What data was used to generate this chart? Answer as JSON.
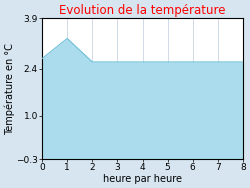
{
  "title": "Evolution de la température",
  "xlabel": "heure par heure",
  "ylabel": "Température en °C",
  "x": [
    0,
    1,
    2,
    3,
    4,
    5,
    6,
    7,
    8
  ],
  "y": [
    2.7,
    3.3,
    2.6,
    2.6,
    2.6,
    2.6,
    2.6,
    2.6,
    2.6
  ],
  "xlim": [
    0,
    8
  ],
  "ylim": [
    -0.3,
    3.9
  ],
  "yticks": [
    -0.3,
    1.0,
    2.4,
    3.9
  ],
  "xticks": [
    0,
    1,
    2,
    3,
    4,
    5,
    6,
    7,
    8
  ],
  "fill_color": "#aadcee",
  "line_color": "#6bbfd8",
  "title_color": "#ff0000",
  "bg_color": "#d6e5ef",
  "plot_bg_color": "#ffffff",
  "grid_color": "#bbccdd",
  "title_fontsize": 8.5,
  "label_fontsize": 7,
  "tick_fontsize": 6.5
}
